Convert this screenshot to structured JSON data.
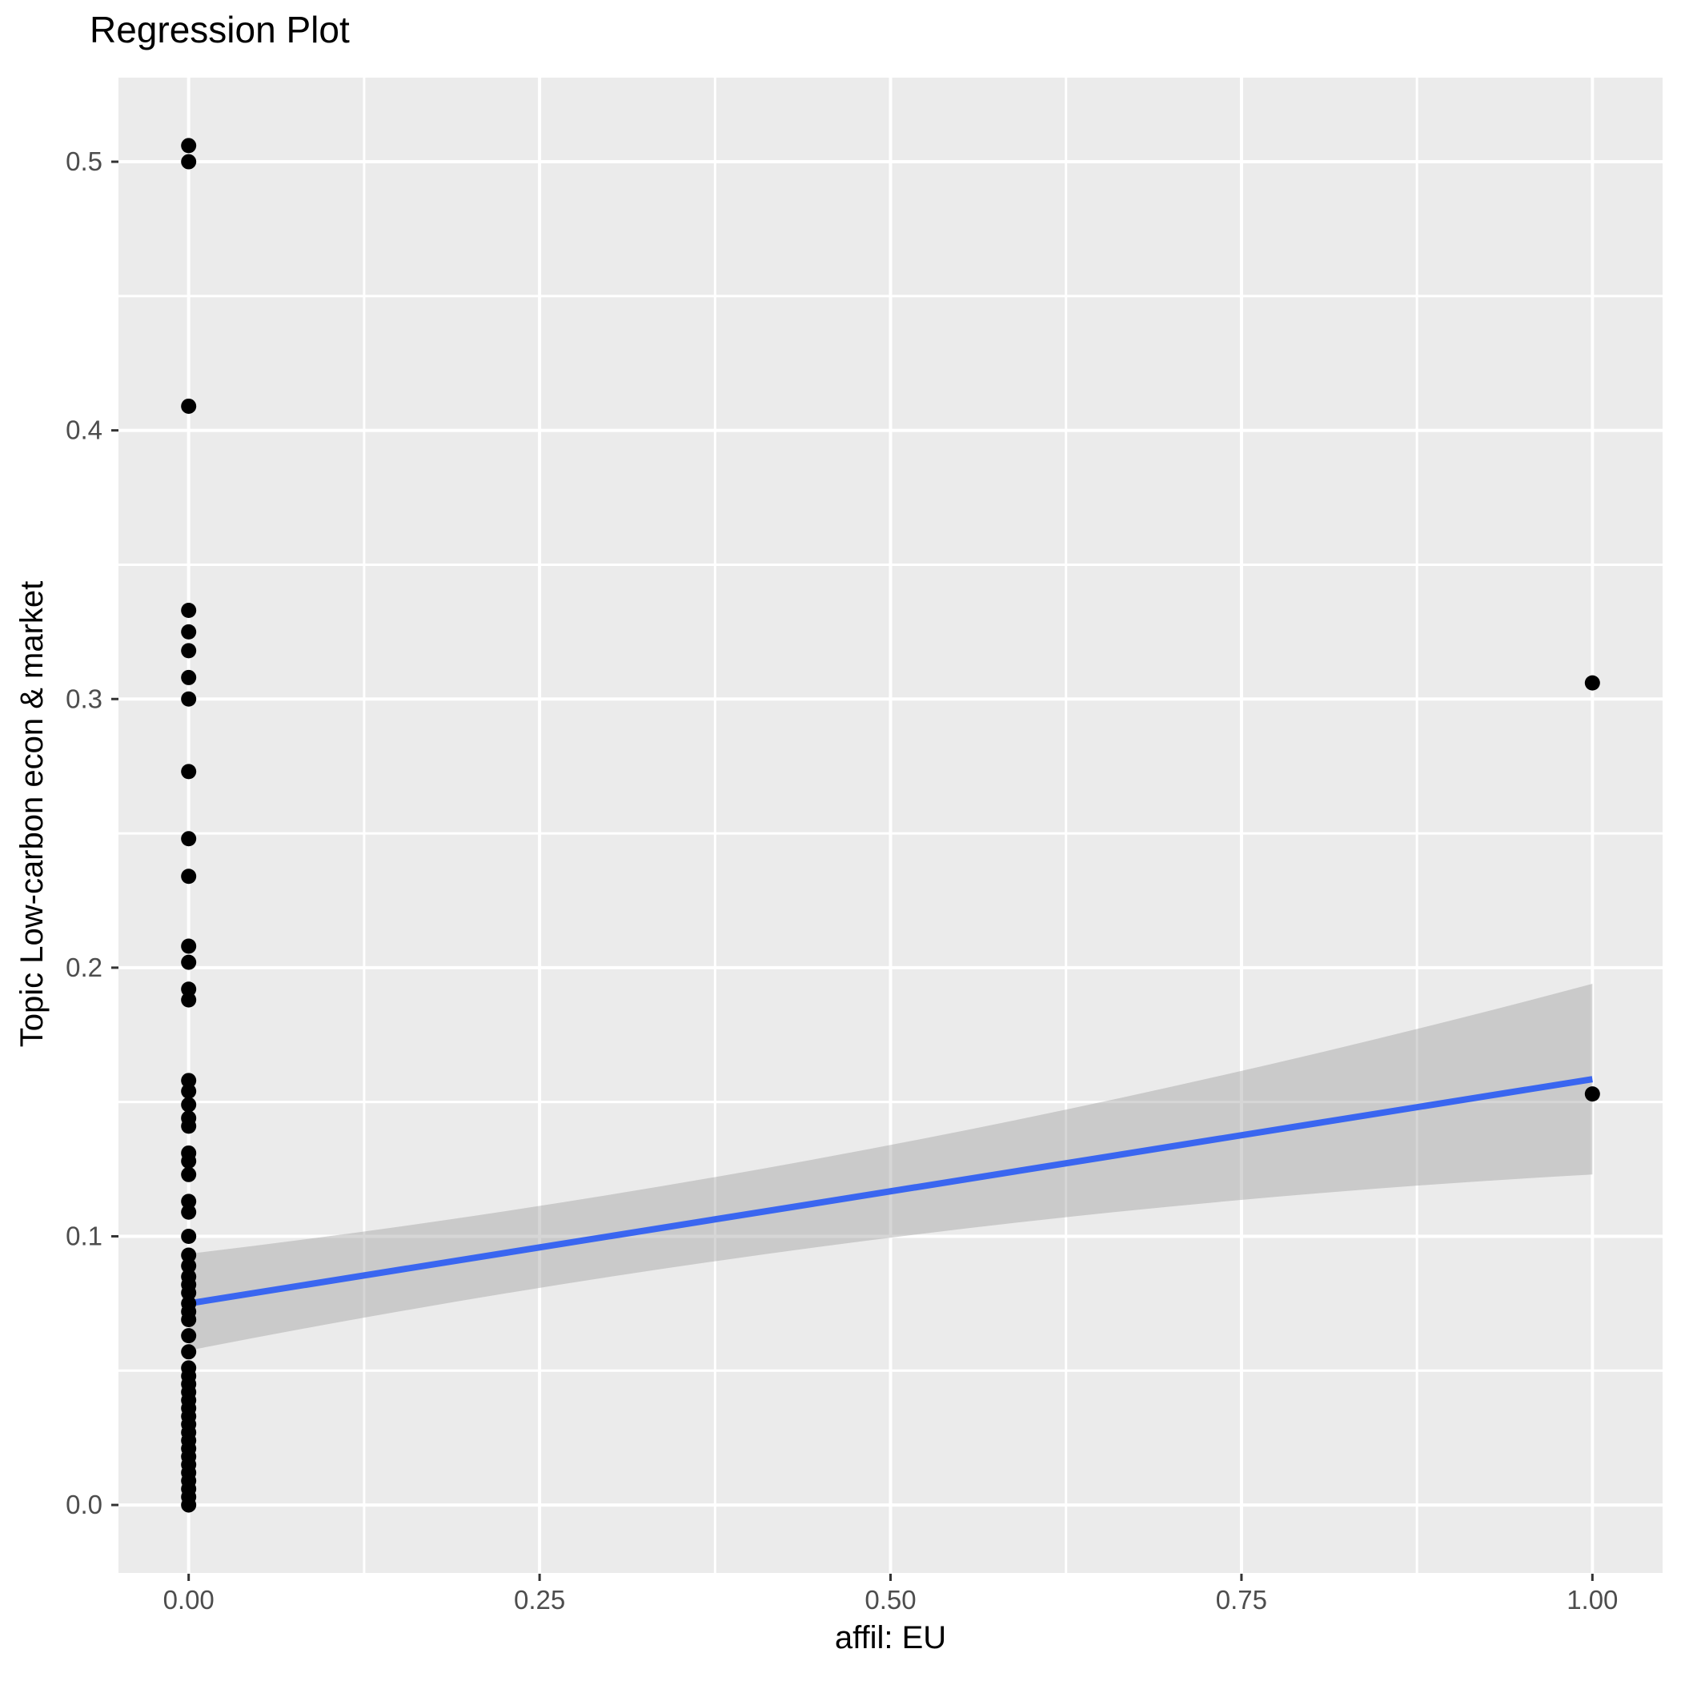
{
  "chart_data": {
    "type": "scatter",
    "title": "Regression Plot",
    "xlabel": "affil: EU",
    "ylabel": "Topic Low-carbon econ & market",
    "legend_position": "none",
    "grid": true,
    "xlim": [
      -0.05,
      1.05
    ],
    "ylim": [
      -0.0253,
      0.5313
    ],
    "x_ticks": [
      {
        "value": 0.0,
        "label": "0.00"
      },
      {
        "value": 0.25,
        "label": "0.25"
      },
      {
        "value": 0.5,
        "label": "0.50"
      },
      {
        "value": 0.75,
        "label": "0.75"
      },
      {
        "value": 1.0,
        "label": "1.00"
      }
    ],
    "y_ticks": [
      {
        "value": 0.0,
        "label": "0.0"
      },
      {
        "value": 0.1,
        "label": "0.1"
      },
      {
        "value": 0.2,
        "label": "0.2"
      },
      {
        "value": 0.3,
        "label": "0.3"
      },
      {
        "value": 0.4,
        "label": "0.4"
      },
      {
        "value": 0.5,
        "label": "0.5"
      }
    ],
    "x_minor_breaks": [
      0.125,
      0.375,
      0.625,
      0.875
    ],
    "y_minor_breaks": [
      0.05,
      0.15,
      0.25,
      0.35,
      0.45
    ],
    "points": [
      [
        0,
        0.506
      ],
      [
        0,
        0.5
      ],
      [
        0,
        0.409
      ],
      [
        0,
        0.333
      ],
      [
        0,
        0.325
      ],
      [
        0,
        0.318
      ],
      [
        0,
        0.308
      ],
      [
        0,
        0.3
      ],
      [
        0,
        0.273
      ],
      [
        0,
        0.248
      ],
      [
        0,
        0.234
      ],
      [
        0,
        0.208
      ],
      [
        0,
        0.202
      ],
      [
        0,
        0.192
      ],
      [
        0,
        0.188
      ],
      [
        0,
        0.158
      ],
      [
        0,
        0.154
      ],
      [
        0,
        0.149
      ],
      [
        0,
        0.144
      ],
      [
        0,
        0.141
      ],
      [
        0,
        0.131
      ],
      [
        0,
        0.128
      ],
      [
        0,
        0.123
      ],
      [
        0,
        0.113
      ],
      [
        0,
        0.109
      ],
      [
        0,
        0.1
      ],
      [
        0,
        0.093
      ],
      [
        0,
        0.089
      ],
      [
        0,
        0.085
      ],
      [
        0,
        0.082
      ],
      [
        0,
        0.079
      ],
      [
        0,
        0.075
      ],
      [
        0,
        0.072
      ],
      [
        0,
        0.069
      ],
      [
        0,
        0.063
      ],
      [
        0,
        0.057
      ],
      [
        0,
        0.051
      ],
      [
        0,
        0.048
      ],
      [
        0,
        0.045
      ],
      [
        0,
        0.042
      ],
      [
        0,
        0.039
      ],
      [
        0,
        0.036
      ],
      [
        0,
        0.033
      ],
      [
        0,
        0.03
      ],
      [
        0,
        0.027
      ],
      [
        0,
        0.024
      ],
      [
        0,
        0.021
      ],
      [
        0,
        0.018
      ],
      [
        0,
        0.015
      ],
      [
        0,
        0.012
      ],
      [
        0,
        0.009
      ],
      [
        0,
        0.006
      ],
      [
        0,
        0.003
      ],
      [
        0,
        0.0
      ],
      [
        1,
        0.306
      ],
      [
        1,
        0.153
      ]
    ],
    "regression_line": {
      "x": [
        0,
        1
      ],
      "y": [
        0.075,
        0.1585
      ]
    },
    "ci_band": {
      "x": [
        0,
        0.5,
        1
      ],
      "upper": [
        0.0935,
        0.134,
        0.194
      ],
      "lower": [
        0.0575,
        0.0995,
        0.123
      ]
    },
    "colors": {
      "panel_bg": "#EBEBEB",
      "grid": "#FFFFFF",
      "point": "#000000",
      "line": "#3A66F0",
      "band": "#999999",
      "band_alpha": 0.4,
      "tick_mark": "#333333",
      "tick_label": "#4D4D4D",
      "title": "#000000"
    }
  }
}
